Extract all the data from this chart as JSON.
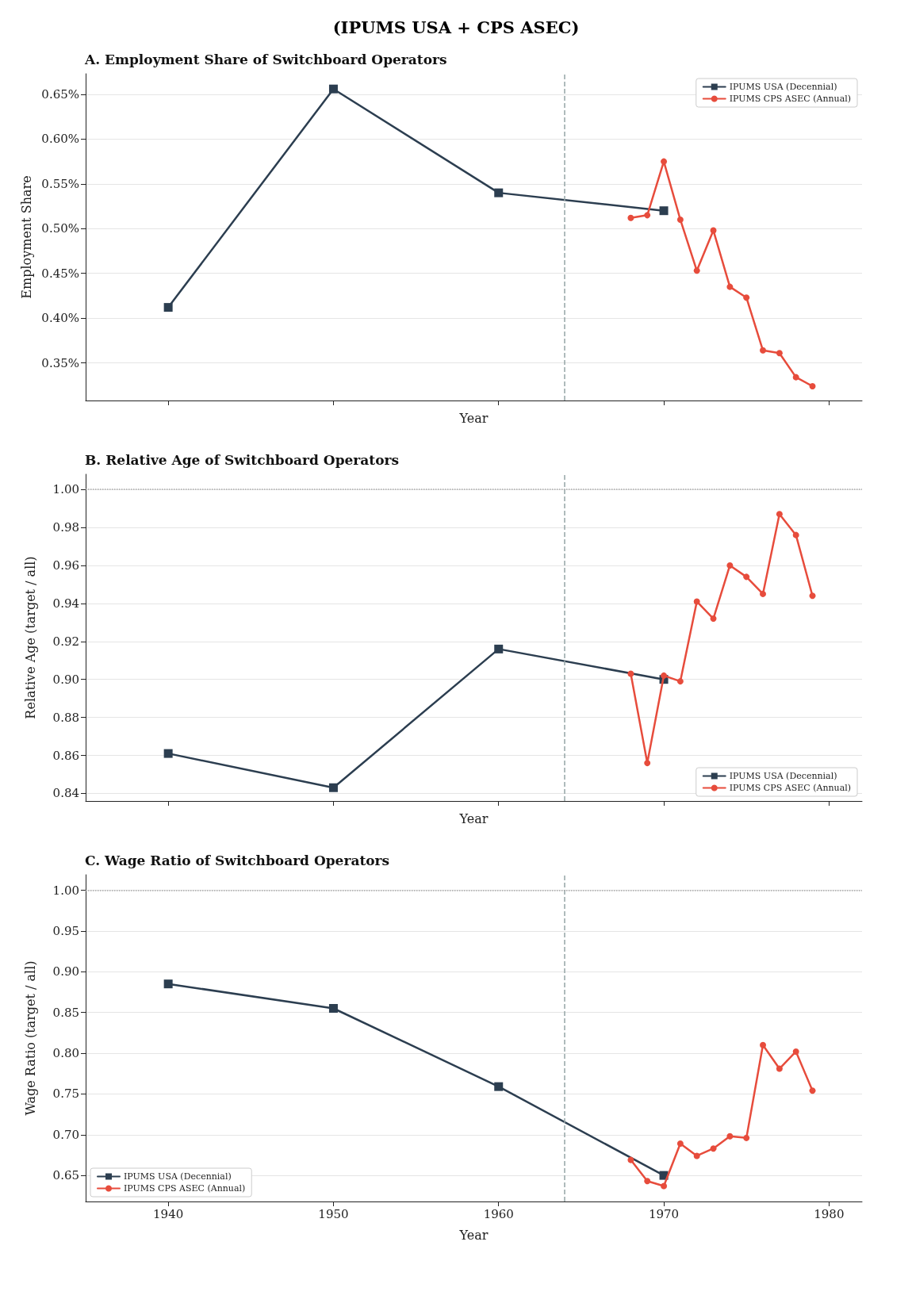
{
  "chart_data": [
    {
      "type": "line",
      "title": "A. Employment Share of Switchboard Operators",
      "annotations": [
        "(IPUMS USA + CPS ASEC)"
      ],
      "xlabel": "Year",
      "ylabel": "Employment Share",
      "xlim": [
        1935,
        1982
      ],
      "xticks": [
        1940,
        1950,
        1960,
        1970,
        1980
      ],
      "ylim": [
        0.308,
        0.673
      ],
      "yticks": [
        {
          "value": 0.35,
          "label": "0.35%"
        },
        {
          "value": 0.4,
          "label": "0.40%"
        },
        {
          "value": 0.45,
          "label": "0.45%"
        },
        {
          "value": 0.5,
          "label": "0.50%"
        },
        {
          "value": 0.55,
          "label": "0.55%"
        },
        {
          "value": 0.6,
          "label": "0.60%"
        },
        {
          "value": 0.65,
          "label": "0.65%"
        }
      ],
      "tick_labels": "y",
      "grid": "y",
      "legend": "top right",
      "ref_lines": [
        {
          "axis": "x",
          "value": 1964,
          "label": null,
          "color": "#95a5a6",
          "line_style": "dashed"
        }
      ],
      "series": [
        {
          "name": "IPUMS USA (Decennial)",
          "color": "#2c3e50",
          "marker": "square",
          "x": [
            1940,
            1950,
            1960,
            1970
          ],
          "values": [
            0.412,
            0.656,
            0.54,
            0.52
          ]
        },
        {
          "name": "IPUMS CPS ASEC (Annual)",
          "color": "#e74c3c",
          "marker": "circle",
          "x": [
            1968,
            1969,
            1970,
            1971,
            1972,
            1973,
            1974,
            1975,
            1976,
            1977,
            1978,
            1979
          ],
          "values": [
            0.512,
            0.515,
            0.575,
            0.51,
            0.453,
            0.498,
            0.435,
            0.423,
            0.364,
            0.361,
            0.334,
            0.324
          ]
        }
      ]
    },
    {
      "type": "line",
      "title": "B. Relative Age of Switchboard Operators",
      "xlabel": "Year",
      "ylabel": "Relative Age (target / all)",
      "xlim": [
        1935,
        1982
      ],
      "xticks": [
        1940,
        1950,
        1960,
        1970,
        1980
      ],
      "ylim": [
        0.836,
        1.008
      ],
      "yticks": [
        {
          "value": 0.84,
          "label": "0.84"
        },
        {
          "value": 0.86,
          "label": "0.86"
        },
        {
          "value": 0.88,
          "label": "0.88"
        },
        {
          "value": 0.9,
          "label": "0.90"
        },
        {
          "value": 0.92,
          "label": "0.92"
        },
        {
          "value": 0.94,
          "label": "0.94"
        },
        {
          "value": 0.96,
          "label": "0.96"
        },
        {
          "value": 0.98,
          "label": "0.98"
        },
        {
          "value": 1,
          "label": "1.00"
        }
      ],
      "tick_labels": "y",
      "grid": "y",
      "legend": "bottom right",
      "ref_lines": [
        {
          "axis": "x",
          "value": 1964,
          "label": null,
          "color": "#95a5a6",
          "line_style": "dashed"
        },
        {
          "axis": "y",
          "value": 1,
          "label": null,
          "color": "#aaaaaa",
          "line_style": "dotted"
        }
      ],
      "series": [
        {
          "name": "IPUMS USA (Decennial)",
          "color": "#2c3e50",
          "marker": "square",
          "x": [
            1940,
            1950,
            1960,
            1970
          ],
          "values": [
            0.861,
            0.843,
            0.916,
            0.9
          ]
        },
        {
          "name": "IPUMS CPS ASEC (Annual)",
          "color": "#e74c3c",
          "marker": "circle",
          "x": [
            1968,
            1969,
            1970,
            1971,
            1972,
            1973,
            1974,
            1975,
            1976,
            1977,
            1978,
            1979
          ],
          "values": [
            0.903,
            0.856,
            0.902,
            0.899,
            0.941,
            0.932,
            0.96,
            0.954,
            0.945,
            0.987,
            0.976,
            0.944
          ]
        }
      ]
    },
    {
      "type": "line",
      "title": "C. Wage Ratio of Switchboard Operators",
      "xlabel": "Year",
      "ylabel": "Wage Ratio (target / all)",
      "xlim": [
        1935,
        1982
      ],
      "xticks": [
        1940,
        1950,
        1960,
        1970,
        1980
      ],
      "ylim": [
        0.618,
        1.019
      ],
      "yticks": [
        {
          "value": 0.65,
          "label": "0.65"
        },
        {
          "value": 0.7,
          "label": "0.70"
        },
        {
          "value": 0.75,
          "label": "0.75"
        },
        {
          "value": 0.8,
          "label": "0.80"
        },
        {
          "value": 0.85,
          "label": "0.85"
        },
        {
          "value": 0.9,
          "label": "0.90"
        },
        {
          "value": 0.95,
          "label": "0.95"
        },
        {
          "value": 1,
          "label": "1.00"
        }
      ],
      "grid": "y",
      "legend": "bottom left",
      "ref_lines": [
        {
          "axis": "x",
          "value": 1964,
          "label": null,
          "color": "#95a5a6",
          "line_style": "dashed"
        },
        {
          "axis": "y",
          "value": 1,
          "label": null,
          "color": "#aaaaaa",
          "line_style": "dotted"
        }
      ],
      "series": [
        {
          "name": "IPUMS USA (Decennial)",
          "color": "#2c3e50",
          "marker": "square",
          "x": [
            1940,
            1950,
            1960,
            1970
          ],
          "values": [
            0.885,
            0.855,
            0.759,
            0.65
          ]
        },
        {
          "name": "IPUMS CPS ASEC (Annual)",
          "color": "#e74c3c",
          "marker": "circle",
          "x": [
            1968,
            1969,
            1970,
            1971,
            1972,
            1973,
            1974,
            1975,
            1976,
            1977,
            1978,
            1979
          ],
          "values": [
            0.669,
            0.643,
            0.637,
            0.689,
            0.674,
            0.683,
            0.698,
            0.696,
            0.81,
            0.781,
            0.802,
            0.754
          ]
        }
      ]
    }
  ]
}
